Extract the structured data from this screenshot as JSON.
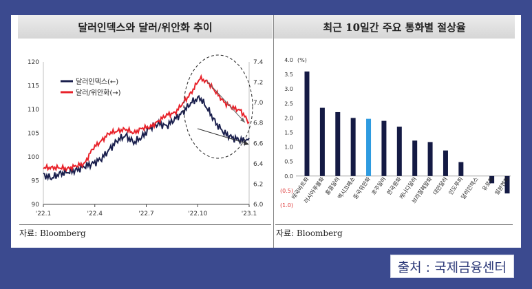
{
  "left_chart": {
    "title": "달러인덱스와 달러/위안화 추이",
    "source": "자료: Bloomberg"
  },
  "right_chart": {
    "title": "최근 10일간 주요 통화별 절상율",
    "source": "자료: Bloomberg"
  },
  "footer": {
    "label": "출처 : 국제금융센터"
  },
  "colors": {
    "background": "#3b4a8f",
    "dollar_index": "#1a1f4d",
    "usd_cny": "#e8222a",
    "bar": "#141a44",
    "bar_highlight": "#2e9be0"
  },
  "chart_data": [
    {
      "type": "line",
      "title": "달러인덱스와 달러/위안화 추이",
      "x_ticks": [
        "'22.1",
        "'22.4",
        "'22.7",
        "'22.10",
        "'23.1"
      ],
      "y_left": {
        "lim": [
          90,
          120
        ],
        "ticks": [
          "90",
          "95",
          "100",
          "105",
          "110",
          "115",
          "120"
        ]
      },
      "y_right": {
        "lim": [
          6.0,
          7.4
        ],
        "ticks": [
          "6.0",
          "6.2",
          "6.4",
          "6.6",
          "6.8",
          "7.0",
          "7.2",
          "7.4"
        ]
      },
      "legend_position": "top-left",
      "x": [
        0,
        0.5,
        1,
        1.5,
        2,
        2.5,
        3,
        3.5,
        4,
        4.5,
        5,
        5.5,
        6,
        6.5,
        7,
        7.5,
        8,
        8.5,
        9,
        9.5,
        10,
        10.5,
        11,
        11.5,
        12,
        12.5
      ],
      "series": [
        {
          "name": "달러인덱스(←)",
          "axis": "left",
          "values": [
            96.2,
            95.5,
            96.5,
            96.8,
            97.2,
            98.0,
            98.6,
            99.5,
            101.5,
            103.5,
            104.5,
            103.0,
            104.2,
            106.2,
            107.0,
            106.5,
            108.0,
            109.5,
            111.5,
            112.5,
            110.0,
            107.0,
            105.0,
            104.0,
            103.5,
            103.5
          ]
        },
        {
          "name": "달러/위안화(→)",
          "axis": "right",
          "values": [
            6.36,
            6.36,
            6.36,
            6.35,
            6.38,
            6.4,
            6.55,
            6.62,
            6.7,
            6.72,
            6.74,
            6.7,
            6.75,
            6.76,
            6.82,
            6.88,
            6.9,
            7.0,
            7.1,
            7.24,
            7.2,
            7.1,
            7.0,
            6.95,
            6.92,
            6.8
          ]
        }
      ],
      "annotations": [
        "dashed circle around the recent divergence",
        "arrows indicating the decline since November 2022"
      ]
    },
    {
      "type": "bar",
      "title": "최근 10일간 주요 통화별 절상율",
      "ylabel": "(%)",
      "ylim": [
        -1.0,
        4.0
      ],
      "y_ticks": [
        "4.0",
        "3.5",
        "3.0",
        "2.5",
        "2.0",
        "1.5",
        "1.0",
        "0.5",
        "0.0",
        "(0.5)",
        "(1.0)"
      ],
      "categories": [
        "태국바트화",
        "러시아루블화",
        "홍콩달러",
        "멕시코페소",
        "중국위안화",
        "호주달러",
        "한국원화",
        "캐나다달러",
        "브라질헤알화",
        "대만달러",
        "인도루피",
        "달러인덱스",
        "유로화",
        "일본엔화"
      ],
      "values": [
        3.6,
        2.35,
        2.2,
        2.0,
        1.97,
        1.9,
        1.7,
        1.22,
        1.17,
        0.88,
        0.48,
        0.0,
        -0.25,
        -0.6
      ],
      "highlight": "중국위안화"
    }
  ]
}
